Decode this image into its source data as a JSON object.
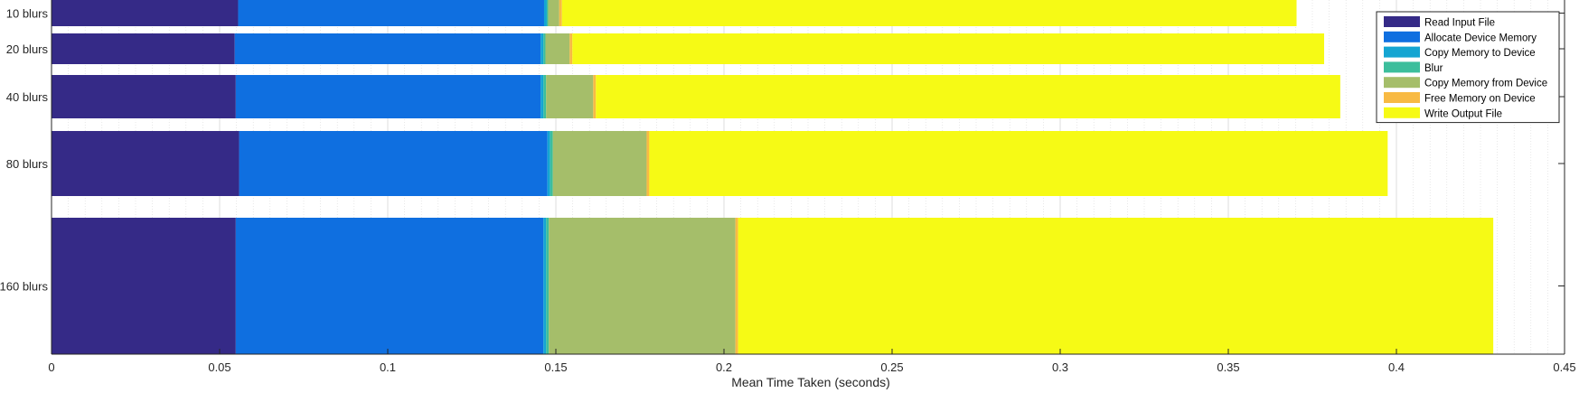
{
  "chart_data": {
    "type": "bar",
    "orientation": "horizontal",
    "stacked": true,
    "title": "",
    "xlabel": "Mean Time Taken (seconds)",
    "ylabel": "",
    "xlim": [
      0,
      0.45
    ],
    "x_ticks": [
      "0",
      "0.05",
      "0.1",
      "0.15",
      "0.2",
      "0.25",
      "0.3",
      "0.35",
      "0.4",
      "0.45"
    ],
    "grid": true,
    "minor_grid": true,
    "legend_position": "top-right",
    "categories": [
      "10 blurs",
      "20 blurs",
      "40 blurs",
      "80 blurs",
      "160 blurs"
    ],
    "series": [
      {
        "name": "Read Input File",
        "color": "#352a87",
        "values": [
          0.0555,
          0.0545,
          0.0548,
          0.0558,
          0.0548
        ]
      },
      {
        "name": "Allocate Device Memory",
        "color": "#0f6fe0",
        "values": [
          0.091,
          0.091,
          0.0907,
          0.0917,
          0.0915
        ]
      },
      {
        "name": "Copy Memory to Device",
        "color": "#14a5d2",
        "values": [
          0.0008,
          0.0008,
          0.0008,
          0.0008,
          0.0008
        ]
      },
      {
        "name": "Blur",
        "color": "#3cbe9c",
        "values": [
          0.0004,
          0.0006,
          0.0008,
          0.0008,
          0.0008
        ]
      },
      {
        "name": "Copy Memory from Device",
        "color": "#a5be6a",
        "values": [
          0.0033,
          0.0072,
          0.014,
          0.0279,
          0.0555
        ]
      },
      {
        "name": "Free Memory on Device",
        "color": "#f8ba43",
        "values": [
          0.0008,
          0.0008,
          0.0008,
          0.0008,
          0.0008
        ]
      },
      {
        "name": "Write Output File",
        "color": "#f6fa15",
        "values": [
          0.2185,
          0.2236,
          0.2214,
          0.2196,
          0.2246
        ]
      }
    ]
  }
}
